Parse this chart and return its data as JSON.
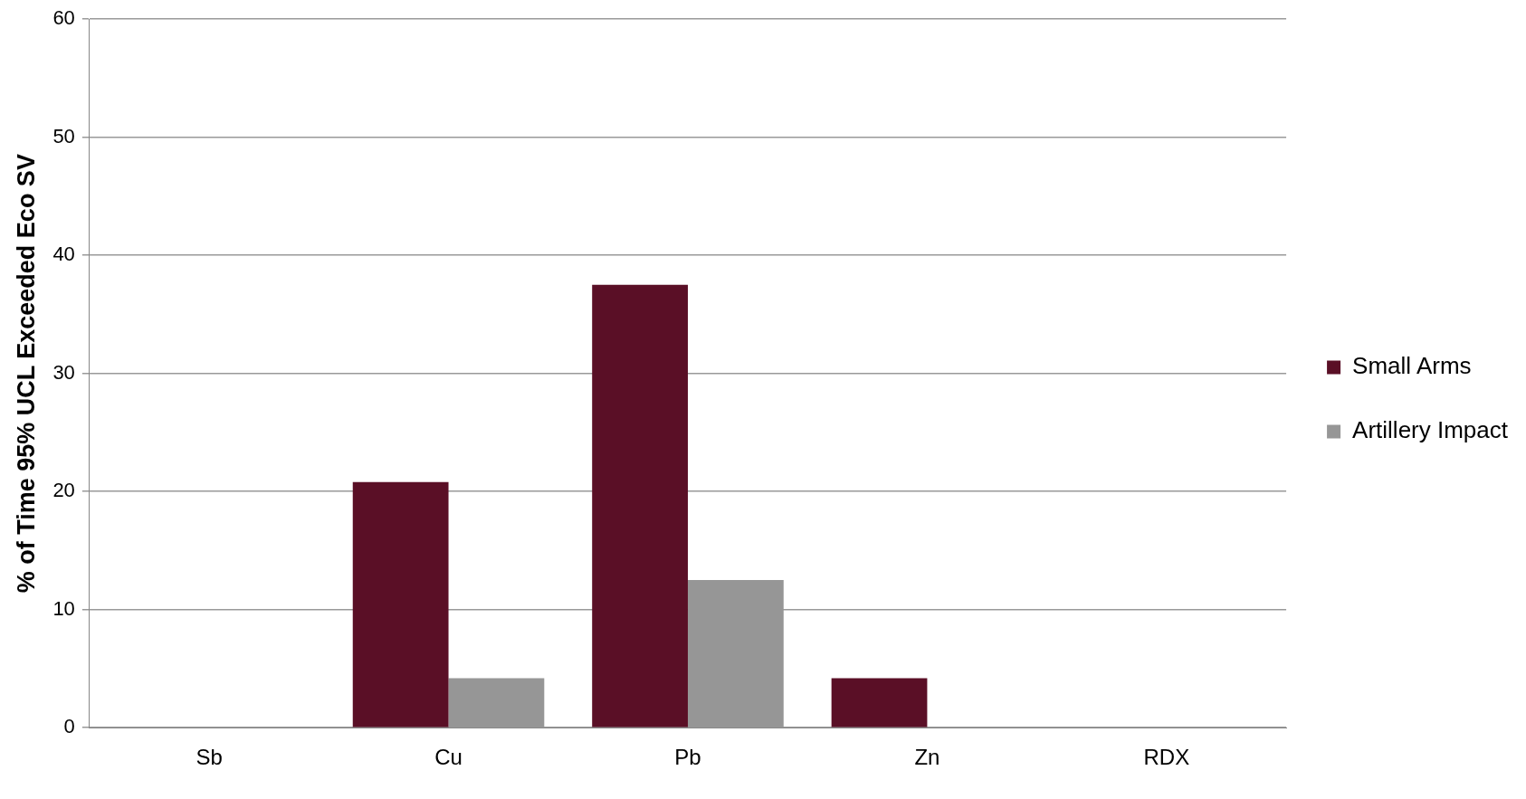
{
  "chart_data": {
    "type": "bar",
    "ylabel": "% of Time 95% UCL Exceeded Eco SV",
    "categories": [
      "Sb",
      "Cu",
      "Pb",
      "Zn",
      "RDX"
    ],
    "series": [
      {
        "name": "Small Arms",
        "color": "#5a0f26",
        "values": [
          0,
          20.8,
          37.5,
          4.2,
          0
        ]
      },
      {
        "name": "Artillery Impact",
        "color": "#969696",
        "values": [
          0,
          4.2,
          12.5,
          0,
          0
        ]
      }
    ],
    "ylim": [
      0,
      60
    ],
    "yticks": [
      0,
      10,
      20,
      30,
      40,
      50,
      60
    ],
    "grid": "y",
    "legend": "right"
  }
}
